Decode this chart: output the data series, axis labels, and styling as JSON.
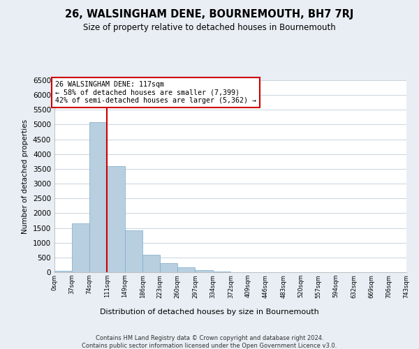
{
  "title": "26, WALSINGHAM DENE, BOURNEMOUTH, BH7 7RJ",
  "subtitle": "Size of property relative to detached houses in Bournemouth",
  "xlabel": "Distribution of detached houses by size in Bournemouth",
  "ylabel": "Number of detached properties",
  "bin_edges": [
    0,
    37,
    74,
    111,
    149,
    186,
    223,
    260,
    297,
    334,
    372,
    409,
    446,
    483,
    520,
    557,
    594,
    632,
    669,
    706,
    743
  ],
  "bin_counts": [
    50,
    1650,
    5080,
    3600,
    1430,
    590,
    300,
    155,
    80,
    30,
    10,
    5,
    0,
    0,
    0,
    0,
    0,
    0,
    0,
    0
  ],
  "bar_color": "#b8cfe0",
  "bar_edge_color": "#7aaac8",
  "property_line_x": 111,
  "property_line_color": "#cc0000",
  "annotation_text": "26 WALSINGHAM DENE: 117sqm\n← 58% of detached houses are smaller (7,399)\n42% of semi-detached houses are larger (5,362) →",
  "annotation_box_color": "#ffffff",
  "annotation_box_edge_color": "#cc0000",
  "ylim": [
    0,
    6500
  ],
  "yticks": [
    0,
    500,
    1000,
    1500,
    2000,
    2500,
    3000,
    3500,
    4000,
    4500,
    5000,
    5500,
    6000,
    6500
  ],
  "tick_labels": [
    "0sqm",
    "37sqm",
    "74sqm",
    "111sqm",
    "149sqm",
    "186sqm",
    "223sqm",
    "260sqm",
    "297sqm",
    "334sqm",
    "372sqm",
    "409sqm",
    "446sqm",
    "483sqm",
    "520sqm",
    "557sqm",
    "594sqm",
    "632sqm",
    "669sqm",
    "706sqm",
    "743sqm"
  ],
  "footnote1": "Contains HM Land Registry data © Crown copyright and database right 2024.",
  "footnote2": "Contains public sector information licensed under the Open Government Licence v3.0.",
  "background_color": "#e8eef4",
  "plot_background_color": "#ffffff",
  "grid_color": "#c8d4e0"
}
